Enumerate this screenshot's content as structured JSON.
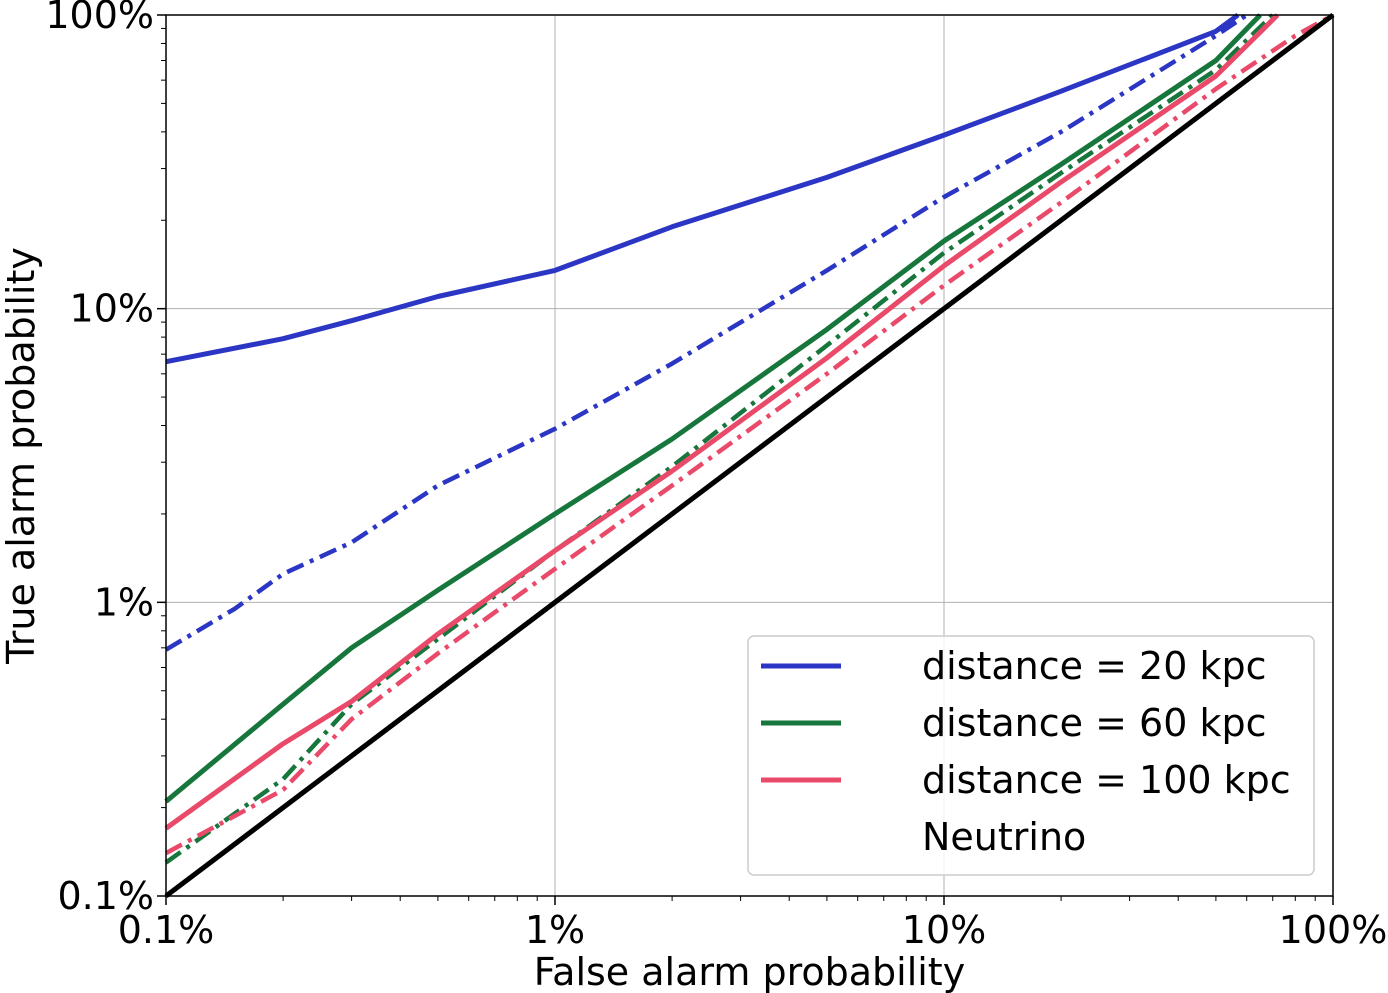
{
  "chart_data": {
    "type": "line",
    "title": "",
    "xlabel": "False alarm probability",
    "ylabel": "True alarm probability",
    "xscale": "log",
    "yscale": "log",
    "xlim": [
      0.001,
      1
    ],
    "ylim": [
      0.001,
      1
    ],
    "grid": true,
    "legend_position": "bottom-right",
    "x_ticks": [
      0.001,
      0.01,
      0.1,
      1
    ],
    "x_tick_labels": [
      "0.1%",
      "1%",
      "10%",
      "100%"
    ],
    "y_ticks": [
      0.001,
      0.01,
      0.1,
      1
    ],
    "y_tick_labels": [
      "0.1%",
      "1%",
      "10%",
      "100%"
    ],
    "legend": [
      {
        "label": "distance = 20 kpc",
        "color": "#2b36c4"
      },
      {
        "label": "distance = 60 kpc",
        "color": "#17763b"
      },
      {
        "label": "distance = 100 kpc",
        "color": "#ea4a6a"
      },
      {
        "label": "Neutrino",
        "color": ""
      }
    ],
    "series": [
      {
        "color": "#2b36c4",
        "style": "solid",
        "x": [
          0.001,
          0.002,
          0.003,
          0.005,
          0.01,
          0.02,
          0.05,
          0.1,
          0.2,
          0.5,
          0.57
        ],
        "y": [
          0.066,
          0.079,
          0.091,
          0.11,
          0.135,
          0.19,
          0.28,
          0.39,
          0.55,
          0.88,
          1.0
        ]
      },
      {
        "color": "#2b36c4",
        "style": "dashdot",
        "x": [
          0.001,
          0.0015,
          0.002,
          0.003,
          0.005,
          0.01,
          0.02,
          0.05,
          0.1,
          0.2,
          0.5,
          0.6
        ],
        "y": [
          0.0069,
          0.0095,
          0.0125,
          0.016,
          0.025,
          0.039,
          0.065,
          0.135,
          0.24,
          0.4,
          0.85,
          1.0
        ]
      },
      {
        "color": "#17763b",
        "style": "solid",
        "x": [
          0.001,
          0.002,
          0.003,
          0.005,
          0.01,
          0.02,
          0.05,
          0.1,
          0.2,
          0.5,
          0.65
        ],
        "y": [
          0.0021,
          0.0045,
          0.007,
          0.011,
          0.02,
          0.036,
          0.085,
          0.17,
          0.31,
          0.7,
          1.0
        ]
      },
      {
        "color": "#17763b",
        "style": "dashdot",
        "x": [
          0.001,
          0.002,
          0.003,
          0.005,
          0.01,
          0.02,
          0.05,
          0.1,
          0.2,
          0.5,
          0.7
        ],
        "y": [
          0.0013,
          0.0025,
          0.0045,
          0.0075,
          0.015,
          0.029,
          0.075,
          0.155,
          0.29,
          0.65,
          1.0
        ]
      },
      {
        "color": "#ea4a6a",
        "style": "solid",
        "x": [
          0.001,
          0.002,
          0.003,
          0.005,
          0.01,
          0.02,
          0.05,
          0.1,
          0.2,
          0.5,
          0.72
        ],
        "y": [
          0.0017,
          0.0033,
          0.0046,
          0.0078,
          0.015,
          0.028,
          0.068,
          0.14,
          0.27,
          0.62,
          1.0
        ]
      },
      {
        "color": "#ea4a6a",
        "style": "dashdot",
        "x": [
          0.001,
          0.002,
          0.003,
          0.005,
          0.01,
          0.02,
          0.05,
          0.1,
          0.2,
          0.5,
          0.8,
          1.0
        ],
        "y": [
          0.0014,
          0.0023,
          0.004,
          0.0067,
          0.013,
          0.025,
          0.06,
          0.12,
          0.23,
          0.56,
          0.85,
          1.0
        ]
      },
      {
        "color": "#000000",
        "style": "solid",
        "x": [
          0.001,
          1.0
        ],
        "y": [
          0.001,
          1.0
        ]
      }
    ]
  }
}
